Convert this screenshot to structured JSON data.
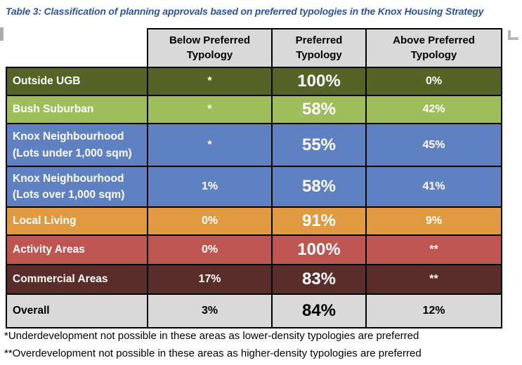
{
  "caption": "Table 3: Classification of planning approvals based on preferred typologies in the Knox Housing Strategy",
  "table": {
    "column_headers": [
      "Below Preferred\nTypology",
      "Preferred\nTypology",
      "Above Preferred\nTypology"
    ],
    "rows": [
      {
        "label": "Outside UGB",
        "below": "*",
        "preferred": "100%",
        "above": "0%"
      },
      {
        "label": "Bush Suburban",
        "below": "*",
        "preferred": "58%",
        "above": "42%"
      },
      {
        "label": "Knox Neighbourhood\n(Lots under 1,000 sqm)",
        "below": "*",
        "preferred": "55%",
        "above": "45%"
      },
      {
        "label": "Knox Neighbourhood\n(Lots over 1,000 sqm)",
        "below": "1%",
        "preferred": "58%",
        "above": "41%"
      },
      {
        "label": "Local Living",
        "below": "0%",
        "preferred": "91%",
        "above": "9%"
      },
      {
        "label": "Activity Areas",
        "below": "0%",
        "preferred": "100%",
        "above": "**"
      },
      {
        "label": "Commercial Areas",
        "below": "17%",
        "preferred": "83%",
        "above": "**"
      },
      {
        "label": "Overall",
        "below": "3%",
        "preferred": "84%",
        "above": "12%"
      }
    ]
  },
  "footnotes": [
    "*Underdevelopment not possible in these areas as lower-density typologies are preferred",
    "**Overdevelopment not possible in these areas as higher-density typologies are preferred"
  ],
  "colors": {
    "caption_blue": "#2f5496",
    "header_gray": "#d9d9d9",
    "outside_ugb_olive": "#566327",
    "bush_suburban_green": "#9fbd5b",
    "knox_blue": "#6081c1",
    "local_living_orange": "#e19a41",
    "activity_areas_red": "#bd5551",
    "commercial_maroon": "#5a2d2a",
    "overall_gray": "#d9d9d9",
    "border_black": "#000000",
    "margin_mark_gray": "#b3b3b3"
  }
}
